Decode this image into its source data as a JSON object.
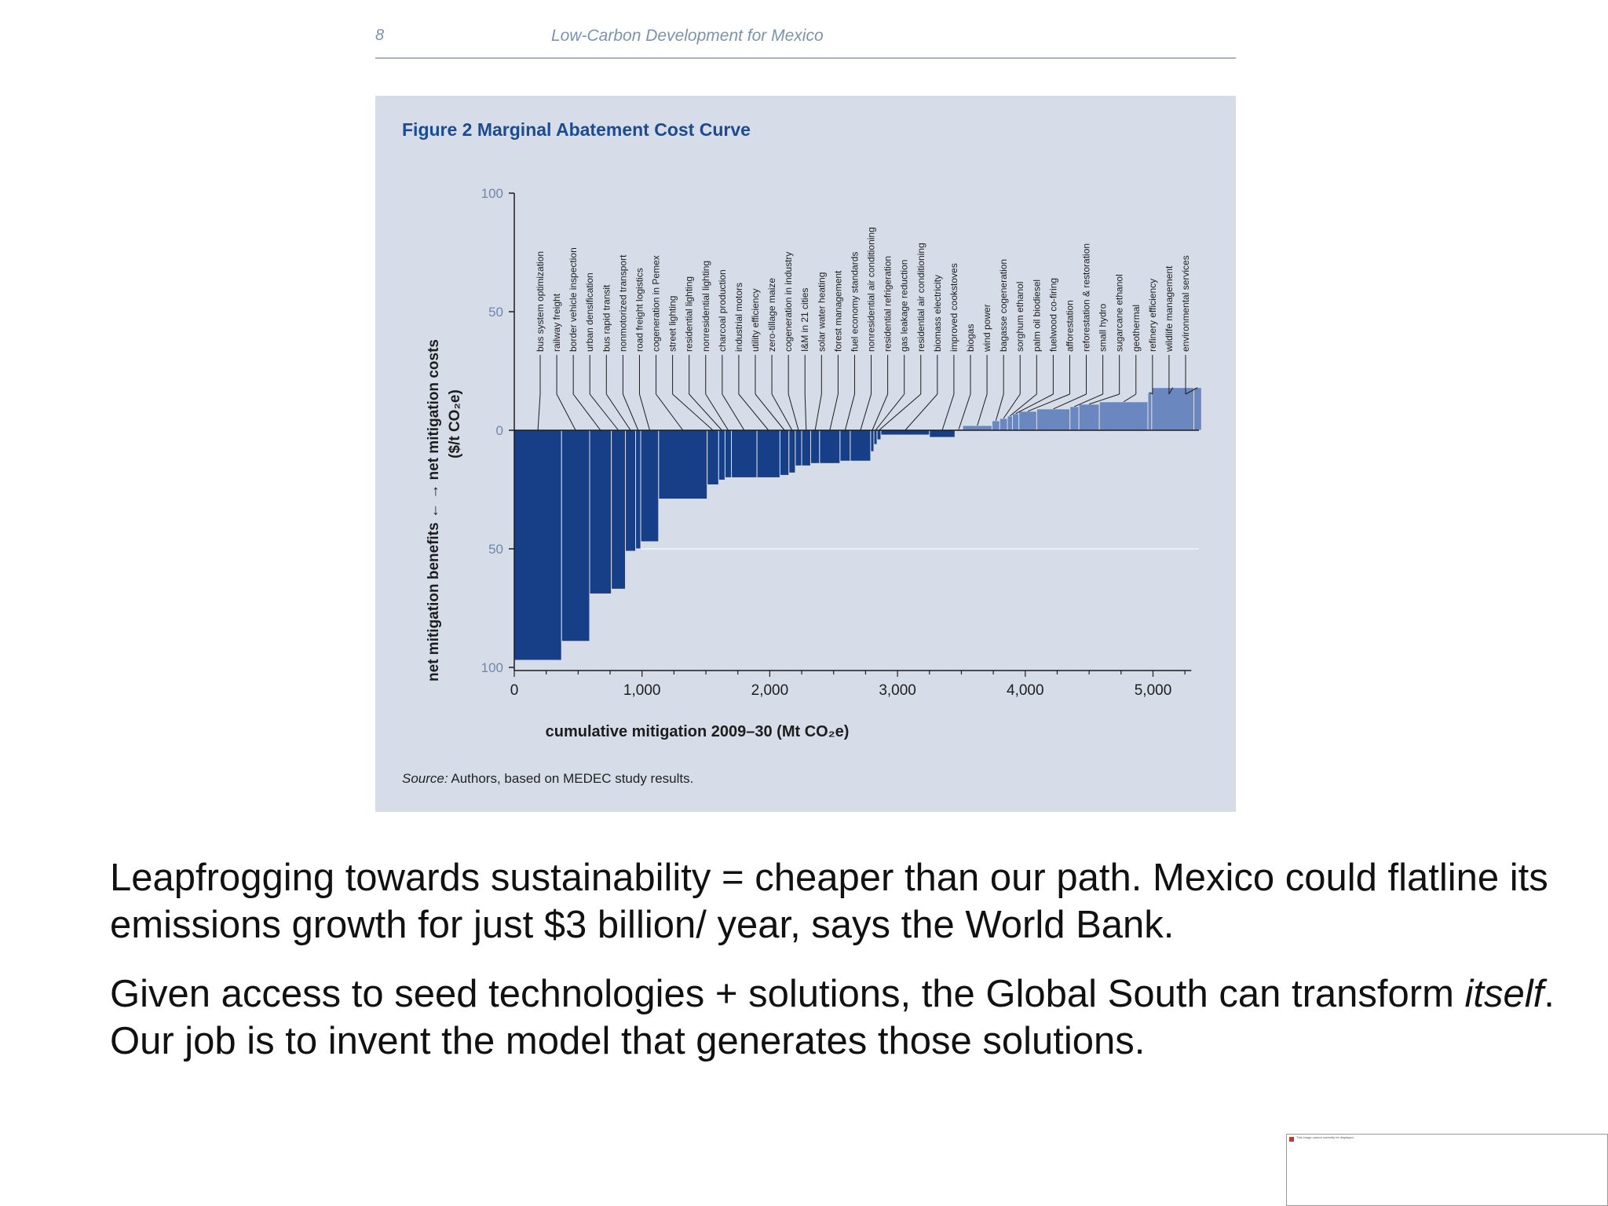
{
  "header": {
    "page_number": "8",
    "running_title": "Low-Carbon Development for Mexico"
  },
  "figure": {
    "title": "Figure 2  Marginal Abatement Cost Curve",
    "source_label": "Source:",
    "source_text": " Authors, based on MEDEC study results."
  },
  "chart_data": {
    "type": "bar",
    "subtype": "marginal-abatement-cost-curve (variable-width bars)",
    "ylabel_line1": "net mitigation benefits ←   → net mitigation costs",
    "ylabel_line2": "($/t CO₂e)",
    "xlabel": "cumulative mitigation 2009–30 (Mt CO₂e)",
    "xlim": [
      0,
      5300
    ],
    "ylim": [
      -100,
      100
    ],
    "x_ticks": [
      0,
      1000,
      2000,
      3000,
      4000,
      5000
    ],
    "x_tick_labels": [
      "0",
      "1,000",
      "2,000",
      "3,000",
      "4,000",
      "5,000"
    ],
    "y_ticks": [
      100,
      50,
      0,
      -50,
      -100
    ],
    "y_tick_labels": [
      "100",
      "50",
      "0",
      "50",
      "100"
    ],
    "grid": "horizontal lines at y = 0 and y = -50",
    "colors": {
      "negative": "#173f88",
      "positive": "#6a87bf",
      "panel": "#d6dde9",
      "title": "#1d4b8f",
      "axis_text": "#6f86ac"
    },
    "measures": [
      {
        "label": "bus system optimization",
        "x_start": 0,
        "x_end": 370,
        "cost": -97
      },
      {
        "label": "railway freight",
        "x_start": 370,
        "x_end": 590,
        "cost": -89
      },
      {
        "label": "border vehicle inspection",
        "x_start": 590,
        "x_end": 760,
        "cost": -69
      },
      {
        "label": "urban densification",
        "x_start": 760,
        "x_end": 870,
        "cost": -67
      },
      {
        "label": "bus rapid transit",
        "x_start": 870,
        "x_end": 950,
        "cost": -51
      },
      {
        "label": "nonmotorized transport",
        "x_start": 950,
        "x_end": 990,
        "cost": -50
      },
      {
        "label": "road freight logistics",
        "x_start": 990,
        "x_end": 1130,
        "cost": -47
      },
      {
        "label": "cogeneration in Pemex",
        "x_start": 1130,
        "x_end": 1510,
        "cost": -29
      },
      {
        "label": "street lighting",
        "x_start": 1510,
        "x_end": 1600,
        "cost": -23
      },
      {
        "label": "residential lighting",
        "x_start": 1600,
        "x_end": 1650,
        "cost": -21
      },
      {
        "label": "nonresidential lighting",
        "x_start": 1650,
        "x_end": 1700,
        "cost": -20
      },
      {
        "label": "charcoal production",
        "x_start": 1700,
        "x_end": 1900,
        "cost": -20
      },
      {
        "label": "industrial motors",
        "x_start": 1900,
        "x_end": 2080,
        "cost": -20
      },
      {
        "label": "utility efficiency",
        "x_start": 2080,
        "x_end": 2150,
        "cost": -19
      },
      {
        "label": "zero-tillage maize",
        "x_start": 2150,
        "x_end": 2200,
        "cost": -18
      },
      {
        "label": "cogeneration in industry",
        "x_start": 2200,
        "x_end": 2250,
        "cost": -15
      },
      {
        "label": "I&M in 21 cities",
        "x_start": 2250,
        "x_end": 2320,
        "cost": -15
      },
      {
        "label": "solar water heating",
        "x_start": 2320,
        "x_end": 2390,
        "cost": -14
      },
      {
        "label": "forest management",
        "x_start": 2390,
        "x_end": 2550,
        "cost": -14
      },
      {
        "label": "fuel economy standards",
        "x_start": 2550,
        "x_end": 2630,
        "cost": -13
      },
      {
        "label": "nonresidential air conditioning",
        "x_start": 2630,
        "x_end": 2790,
        "cost": -13
      },
      {
        "label": "residential refrigeration",
        "x_start": 2790,
        "x_end": 2815,
        "cost": -9
      },
      {
        "label": "gas leakage reduction",
        "x_start": 2815,
        "x_end": 2840,
        "cost": -6
      },
      {
        "label": "residential air conditioning",
        "x_start": 2840,
        "x_end": 2870,
        "cost": -4
      },
      {
        "label": "biomass electricity",
        "x_start": 2870,
        "x_end": 3250,
        "cost": -2
      },
      {
        "label": "improved cookstoves",
        "x_start": 3250,
        "x_end": 3450,
        "cost": -3
      },
      {
        "label": "biogas",
        "x_start": 3450,
        "x_end": 3510,
        "cost": 0.5
      },
      {
        "label": "wind power",
        "x_start": 3510,
        "x_end": 3740,
        "cost": 2
      },
      {
        "label": "bagasse cogeneration",
        "x_start": 3740,
        "x_end": 3800,
        "cost": 4
      },
      {
        "label": "sorghum ethanol",
        "x_start": 3800,
        "x_end": 3860,
        "cost": 5
      },
      {
        "label": "palm oil biodiesel",
        "x_start": 3860,
        "x_end": 3900,
        "cost": 6
      },
      {
        "label": "fuelwood co-firing",
        "x_start": 3900,
        "x_end": 3950,
        "cost": 7
      },
      {
        "label": "afforestation",
        "x_start": 3950,
        "x_end": 4090,
        "cost": 8
      },
      {
        "label": "reforestation & restoration",
        "x_start": 4090,
        "x_end": 4350,
        "cost": 9
      },
      {
        "label": "small hydro",
        "x_start": 4350,
        "x_end": 4420,
        "cost": 10
      },
      {
        "label": "sugarcane ethanol",
        "x_start": 4420,
        "x_end": 4580,
        "cost": 11
      },
      {
        "label": "geothermal",
        "x_start": 4580,
        "x_end": 4960,
        "cost": 12
      },
      {
        "label": "refinery efficiency",
        "x_start": 4960,
        "x_end": 4990,
        "cost": 16
      },
      {
        "label": "wildlife management",
        "x_start": 4990,
        "x_end": 5320,
        "cost": 18
      },
      {
        "label": "environmental services",
        "x_start": 5320,
        "x_end": 5380,
        "cost": 18
      }
    ]
  },
  "bullets": {
    "p1": "Leapfrogging towards sustainability = cheaper than our path. Mexico could flatline its emissions growth for just $3 billion/ year, says the World Bank.",
    "p2_before": "Given access to seed technologies + solutions, the Global South can transform ",
    "p2_emphasis": "itself",
    "p2_after": ". Our job is to invent the model that generates those solutions."
  },
  "embed_placeholder": {
    "text": "This image cannot currently be displayed."
  }
}
